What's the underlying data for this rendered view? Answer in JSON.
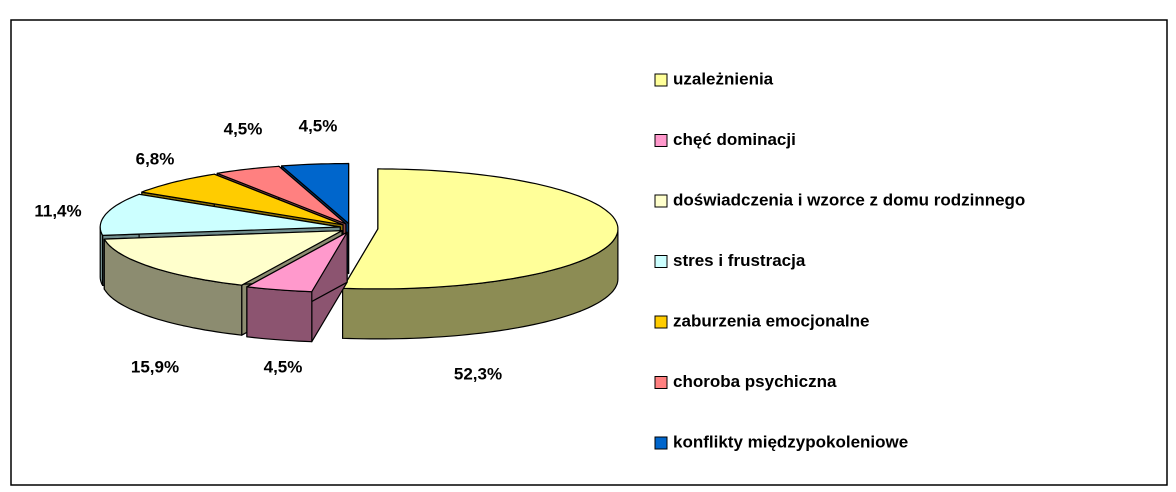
{
  "chart_data": {
    "type": "pie",
    "categories": [
      "uzależnienia",
      "chęć dominacji",
      "doświadczenia i wzorce z domu rodzinnego",
      "stres i frustracja",
      "zaburzenia emocjonalne",
      "choroba psychiczna",
      "konflikty międzypokoleniowe"
    ],
    "values": [
      52.3,
      4.5,
      15.9,
      11.4,
      6.8,
      4.5,
      4.5
    ],
    "value_labels": [
      "52,3%",
      "4,5%",
      "15,9%",
      "11,4%",
      "6,8%",
      "4,5%",
      "4,5%"
    ],
    "colors": [
      "#ffff99",
      "#ff99cc",
      "#ffffcc",
      "#ccffff",
      "#ffcc00",
      "#ff8080",
      "#0066cc"
    ],
    "legend": "right"
  }
}
